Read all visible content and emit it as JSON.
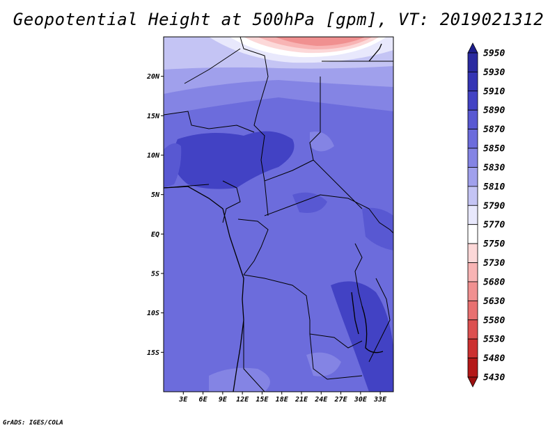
{
  "title": "Geopotential Height at 500hPa [gpm], VT: 2019021312",
  "credit": "GrADS: IGES/COLA",
  "map": {
    "lon_range": [
      0,
      35
    ],
    "lat_range": [
      -20,
      25
    ],
    "lon_ticks": [
      "3E",
      "6E",
      "9E",
      "12E",
      "15E",
      "18E",
      "21E",
      "24E",
      "27E",
      "30E",
      "33E"
    ],
    "lat_ticks": [
      "20N",
      "15N",
      "10N",
      "5N",
      "EQ",
      "5S",
      "10S",
      "15S"
    ],
    "lat_tick_values": [
      20,
      15,
      10,
      5,
      0,
      -5,
      -10,
      -15
    ],
    "lon_tick_values": [
      3,
      6,
      9,
      12,
      15,
      18,
      21,
      24,
      27,
      30,
      33
    ]
  },
  "colorbar": {
    "levels": [
      "5950",
      "5930",
      "5910",
      "5890",
      "5870",
      "5850",
      "5830",
      "5810",
      "5790",
      "5770",
      "5750",
      "5730",
      "5680",
      "5630",
      "5580",
      "5530",
      "5480",
      "5430"
    ],
    "colors": [
      "#1e1e8c",
      "#2a2aa0",
      "#3434b4",
      "#4242c4",
      "#5858d2",
      "#6c6cdc",
      "#8484e4",
      "#a0a0ec",
      "#c4c4f4",
      "#e8e8fc",
      "#ffffff",
      "#fcd8d8",
      "#f8b4b4",
      "#f09090",
      "#e87070",
      "#dc5050",
      "#cc3030",
      "#b41818",
      "#9c1010"
    ]
  }
}
